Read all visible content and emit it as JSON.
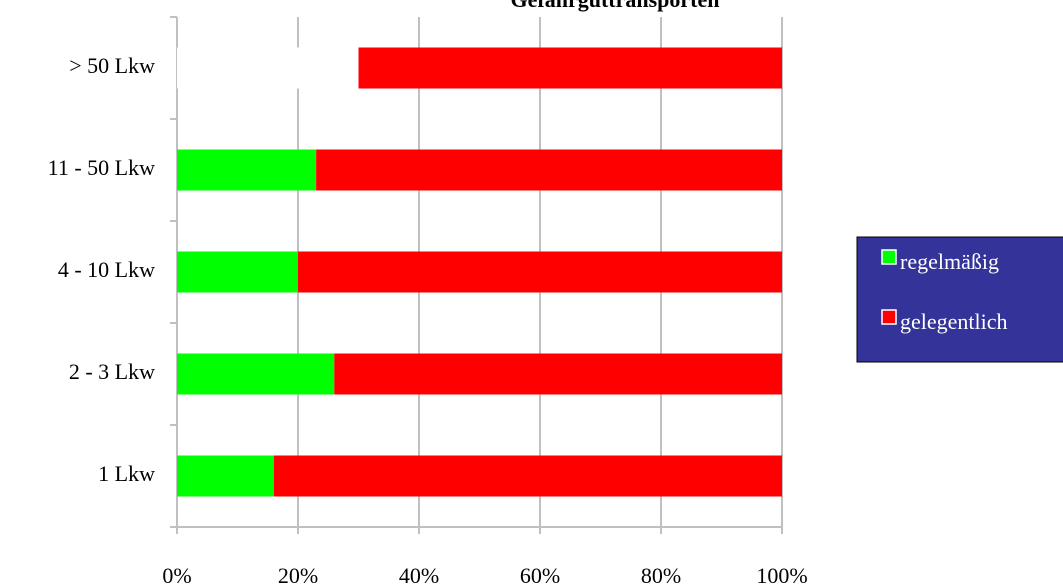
{
  "chart_data": {
    "type": "bar",
    "orientation": "horizontal",
    "stacked": true,
    "title": "Gefahrguttransporten",
    "categories": [
      "> 50 Lkw",
      "11 - 50 Lkw",
      "4 - 10 Lkw",
      "2 - 3 Lkw",
      "1 Lkw"
    ],
    "series": [
      {
        "name": "regelmäßig",
        "color": "#00ff00",
        "point_colors": [
          "#ffffff",
          "#00ff00",
          "#00ff00",
          "#00ff00",
          "#00ff00"
        ],
        "values": [
          30,
          23,
          20,
          26,
          16
        ]
      },
      {
        "name": "gelegentlich",
        "color": "#ff0000",
        "values": [
          70,
          77,
          80,
          74,
          84
        ]
      }
    ],
    "xlim": [
      0,
      100
    ],
    "xticks": [
      {
        "value": 0,
        "label": "0%"
      },
      {
        "value": 20,
        "label": "20%"
      },
      {
        "value": 40,
        "label": "40%"
      },
      {
        "value": 60,
        "label": "60%"
      },
      {
        "value": 80,
        "label": "80%"
      },
      {
        "value": 100,
        "label": "100%"
      }
    ],
    "grid": true,
    "legend": "right",
    "legend_color": "#333399"
  }
}
